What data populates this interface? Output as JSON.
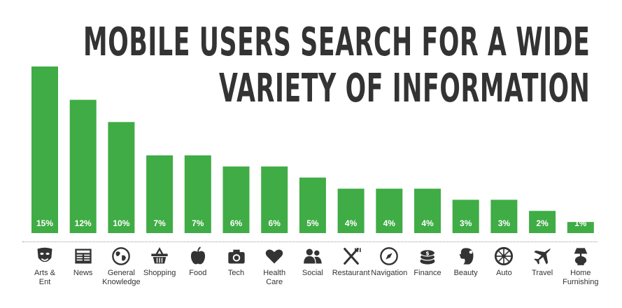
{
  "chart_data": {
    "type": "bar",
    "title": "MOBILE USERS SEARCH FOR A WIDE VARIETY OF INFORMATION",
    "title_lines": [
      "MOBILE USERS SEARCH FOR A WIDE",
      "VARIETY OF INFORMATION"
    ],
    "categories": [
      "Arts &\nEnt",
      "News",
      "General\nKnowledge",
      "Shopping",
      "Food",
      "Tech",
      "Health\nCare",
      "Social",
      "Restaurant",
      "Navigation",
      "Finance",
      "Beauty",
      "Auto",
      "Travel",
      "Home\nFurnishing"
    ],
    "values": [
      15,
      12,
      10,
      7,
      7,
      6,
      6,
      5,
      4,
      4,
      4,
      3,
      3,
      2,
      1
    ],
    "value_labels": [
      "15%",
      "12%",
      "10%",
      "7%",
      "7%",
      "6%",
      "6%",
      "5%",
      "4%",
      "4%",
      "4%",
      "3%",
      "3%",
      "2%",
      "1%"
    ],
    "icons": [
      "theater-mask-icon",
      "newspaper-icon",
      "globe-icon",
      "shopping-basket-icon",
      "apple-icon",
      "camera-icon",
      "heart-icon",
      "people-icon",
      "fork-knife-icon",
      "compass-icon",
      "coins-icon",
      "woman-head-icon",
      "wheel-icon",
      "airplane-icon",
      "lamp-icon"
    ],
    "ylim": [
      0,
      15
    ],
    "grid": false,
    "bar_color": "#3fac45",
    "label_color": "#ffffff",
    "icon_color": "#333333"
  }
}
